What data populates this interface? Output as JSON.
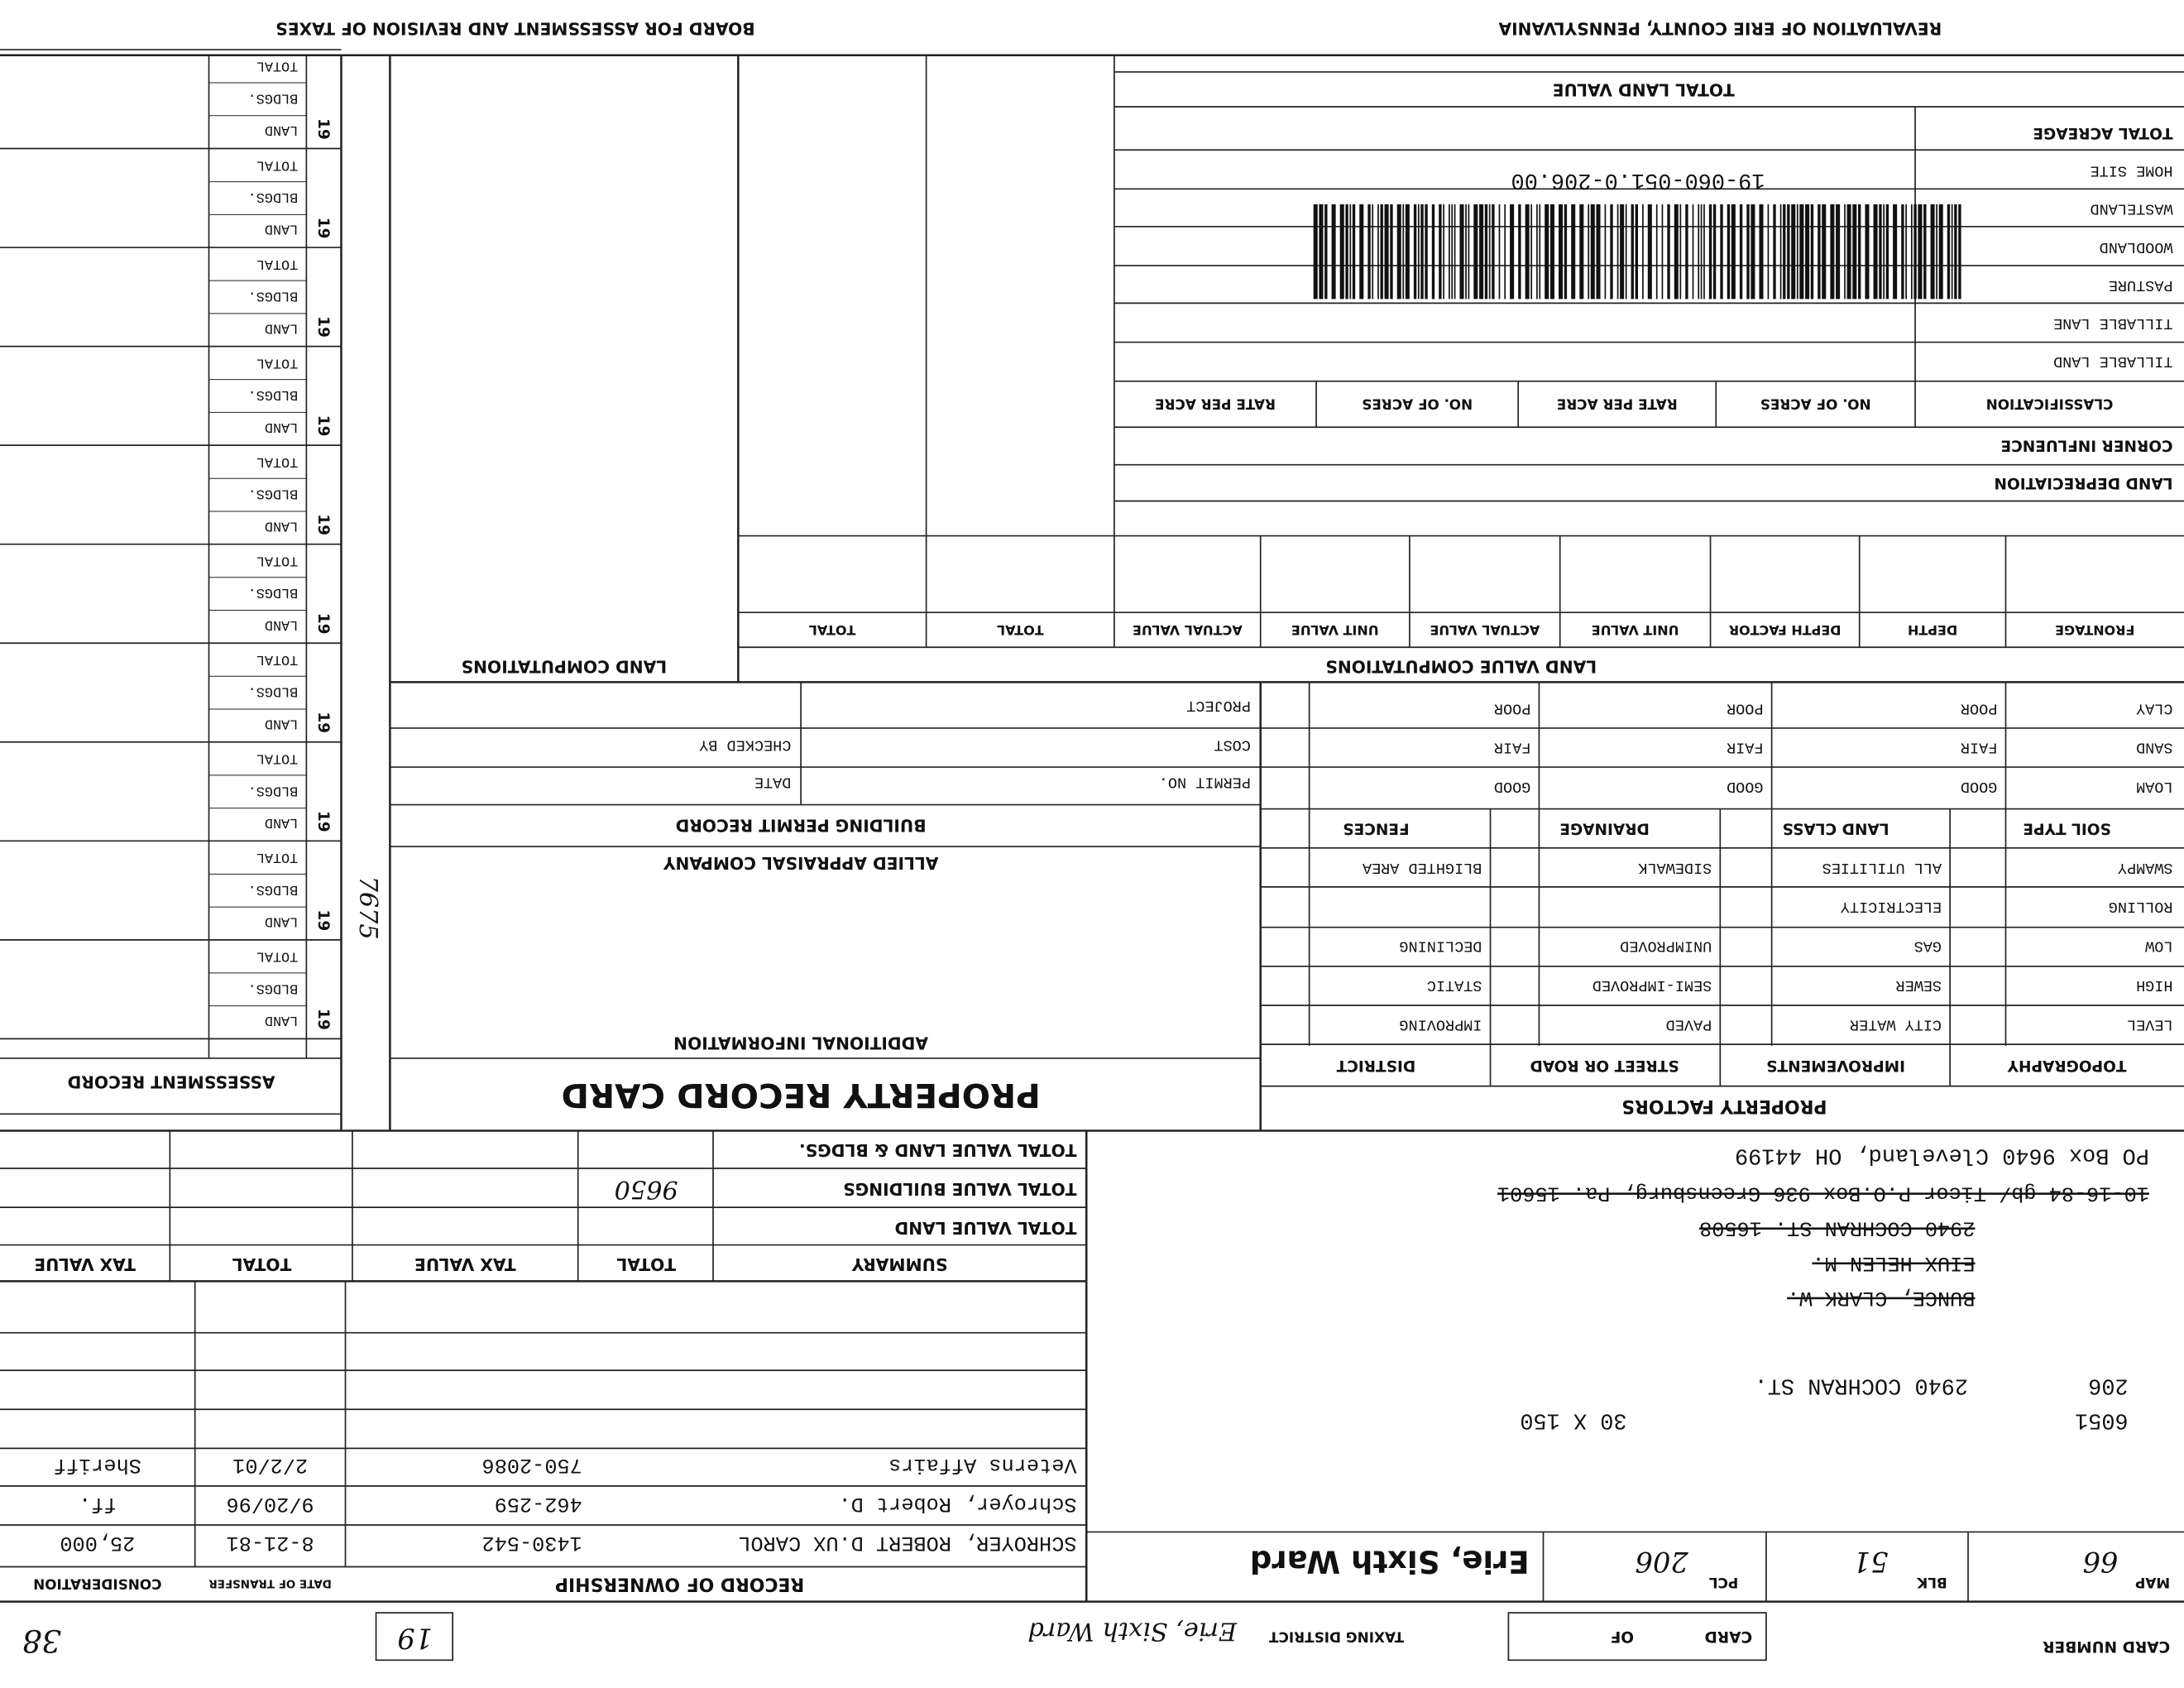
{
  "header": {
    "title": "REVALUATION OF ERIE COUNTY, PENNSYLVANIA",
    "board": "BOARD FOR ASSESSMENT AND REVISION OF TAXES"
  },
  "card": {
    "card_number_label": "CARD NUMBER",
    "card_label": "CARD",
    "of_label": "OF",
    "taxing_district_label": "TAXING DISTRICT",
    "taxing_district": "Erie, Sixth Ward",
    "district_code": "19",
    "corner_note": "38"
  },
  "parcel": {
    "map_label": "MAP",
    "map": "66",
    "blk_label": "BLK",
    "blk": "51",
    "pcl_label": "PCL",
    "pcl": "206",
    "ward": "Erie, Sixth Ward"
  },
  "ownership": {
    "title": "RECORD OF OWNERSHIP",
    "date_header": "DATE OF TRANSFER",
    "consideration_header": "CONSIDERATION",
    "rows": [
      [
        "SCHROYER, ROBERT D.UX CAROL",
        "1430-542",
        "8-21-81",
        "25,000"
      ],
      [
        "Schroyer, Robert D.",
        "462-259",
        "9/20/96",
        "ff."
      ],
      [
        "Veterns Affairs",
        "750-2086",
        "2/2/01",
        "Sheriff"
      ]
    ]
  },
  "address": {
    "map_no": "6051",
    "size": "30 X 150",
    "parcel": "206",
    "street": "2940 COCHRAN ST.",
    "former": [
      "BUNCE, CLARK W.",
      "EIUX HELEN M.",
      "2940 COCHRAN ST. 16508",
      "10-16-84 gb/ Ticor P.O.Box 936 Greensburg, Pa. 15601"
    ],
    "current": "PO Box 9640 Cleveland, OH 44199"
  },
  "summary": {
    "headers": [
      "SUMMARY",
      "TOTAL",
      "TAX VALUE",
      "TOTAL",
      "TAX VALUE"
    ],
    "rows": [
      "TOTAL VALUE LAND",
      "TOTAL VALUE BUILDINGS",
      "TOTAL VALUE LAND & BLDGS."
    ],
    "note": "9650"
  },
  "property_factors": {
    "title": "PROPERTY FACTORS",
    "headers": [
      "TOPOGRAPHY",
      "IMPROVEMENTS",
      "STREET OR ROAD",
      "DISTRICT"
    ],
    "topography": [
      "LEVEL",
      "HIGH",
      "LOW",
      "ROLLING",
      "SWAMPY"
    ],
    "improvements": [
      "CITY WATER",
      "SEWER",
      "GAS",
      "ELECTRICITY",
      "ALL UTILITIES"
    ],
    "street": [
      "PAVED",
      "SEMI-IMPROVED",
      "UNIMPROVED",
      "SIDEWALK"
    ],
    "district": [
      "IMPROVING",
      "STATIC",
      "DECLINING",
      "BLIGHTED AREA"
    ],
    "headers2": [
      "SOIL TYPE",
      "LAND CLASS",
      "DRAINAGE",
      "FENCES"
    ],
    "soil": [
      "LOAM",
      "SAND",
      "CLAY"
    ],
    "grades": [
      "GOOD",
      "FAIR",
      "POOR"
    ]
  },
  "record_card": {
    "title": "PROPERTY RECORD CARD",
    "additional": "ADDITIONAL INFORMATION",
    "company": "ALLIED APPRAISAL COMPANY",
    "permit_title": "BUILDING PERMIT RECORD",
    "permit_no": "PERMIT NO.",
    "date": "DATE",
    "cost": "COST",
    "checked_by": "CHECKED BY",
    "project": "PROJECT",
    "note": "7675"
  },
  "assessment": {
    "title": "ASSESSMENT RECORD",
    "year": "19",
    "labels": [
      "LAND",
      "BLDGS.",
      "TOTAL"
    ]
  },
  "land": {
    "title": "LAND VALUE COMPUTATIONS",
    "side_title": "LAND COMPUTATIONS",
    "headers": [
      "FRONTAGE",
      "DEPTH",
      "DEPTH FACTOR",
      "UNIT VALUE",
      "ACTUAL VALUE",
      "UNIT VALUE",
      "ACTUAL VALUE",
      "TOTAL",
      "TOTAL"
    ],
    "depreciation": "LAND DEPRECIATION",
    "corner": "CORNER INFLUENCE",
    "class_headers": [
      "CLASSIFICATION",
      "NO. OF ACRES",
      "RATE PER ACRE",
      "NO. OF ACRES",
      "RATE PER ACRE"
    ],
    "classes": [
      "TILLABLE LAND",
      "TILLABLE LANE",
      "PASTURE",
      "WOODLAND",
      "WASTELAND",
      "HOME SITE",
      "TOTAL ACREAGE"
    ],
    "barcode": "19-060-051.0-206.00",
    "total": "TOTAL LAND VALUE"
  }
}
